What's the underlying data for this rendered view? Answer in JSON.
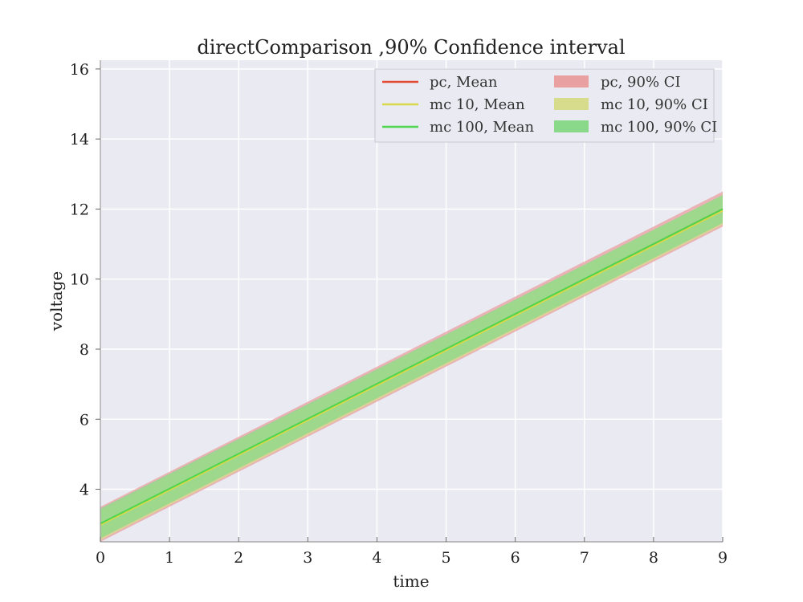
{
  "chart_data": {
    "type": "line",
    "title": "directComparison ,90% Confidence interval",
    "xlabel": "time",
    "ylabel": "voltage",
    "xlim": [
      0,
      9
    ],
    "ylim": [
      2.5,
      16.25
    ],
    "xticks": [
      0,
      1,
      2,
      3,
      4,
      5,
      6,
      7,
      8,
      9
    ],
    "yticks": [
      4,
      6,
      8,
      10,
      12,
      14,
      16
    ],
    "grid": true,
    "legend_position": "top-right",
    "series": [
      {
        "name": "pc, Mean",
        "type": "line",
        "color": "#e24a33",
        "x": [
          0,
          9
        ],
        "y": [
          3.0,
          12.0
        ]
      },
      {
        "name": "mc 10, Mean",
        "type": "line",
        "color": "#d8d84a",
        "x": [
          0,
          9
        ],
        "y": [
          2.98,
          11.95
        ]
      },
      {
        "name": "mc 100, Mean",
        "type": "line",
        "color": "#4fd64f",
        "x": [
          0,
          9
        ],
        "y": [
          3.02,
          12.0
        ]
      }
    ],
    "bands": [
      {
        "name": "pc, 90% CI",
        "color": "#e8a0a0",
        "x": [
          0,
          9
        ],
        "lower": [
          2.5,
          11.5
        ],
        "upper": [
          3.5,
          12.5
        ]
      },
      {
        "name": "mc 10, 90% CI",
        "color": "#d7dc8c",
        "x": [
          0,
          9
        ],
        "lower": [
          2.55,
          11.55
        ],
        "upper": [
          3.4,
          12.4
        ]
      },
      {
        "name": "mc 100, 90% CI",
        "color": "#8ad98a",
        "x": [
          0,
          9
        ],
        "lower": [
          2.6,
          11.6
        ],
        "upper": [
          3.45,
          12.4
        ]
      }
    ]
  }
}
